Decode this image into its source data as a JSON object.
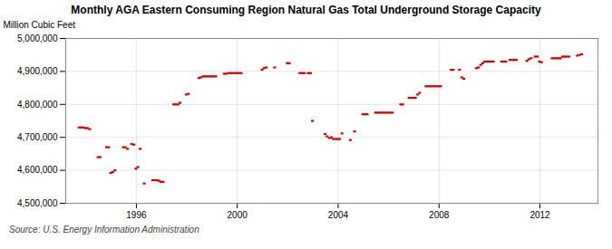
{
  "chart_data": {
    "type": "scatter",
    "marker": "hline",
    "title": "Monthly AGA Eastern Consuming Region Natural Gas Total Underground Storage Capacity",
    "ylabel": "Million Cubic Feet",
    "source": "Source: U.S. Energy Information Administration",
    "color": "#cc0000",
    "grid": true,
    "xlim": [
      1993.2,
      2014.3
    ],
    "xticks": [
      1996,
      2000,
      2004,
      2008,
      2012
    ],
    "ylim": [
      4500000,
      5000000
    ],
    "yticks": [
      {
        "value": 4500000,
        "label": "4,500,000"
      },
      {
        "value": 4600000,
        "label": "4,600,000"
      },
      {
        "value": 4700000,
        "label": "4,700,000"
      },
      {
        "value": 4800000,
        "label": "4,800,000"
      },
      {
        "value": 4900000,
        "label": "4,900,000"
      },
      {
        "value": 5000000,
        "label": "5,000,000"
      }
    ],
    "x": [
      1993.75,
      1993.83,
      1993.92,
      1994.0,
      1994.08,
      1994.17,
      1994.5,
      1994.58,
      1994.83,
      1994.92,
      1995.0,
      1995.08,
      1995.17,
      1995.5,
      1995.58,
      1995.67,
      1995.83,
      1995.92,
      1996.0,
      1996.08,
      1996.17,
      1996.33,
      1996.67,
      1996.75,
      1996.83,
      1996.92,
      1997.0,
      1997.08,
      1997.5,
      1997.58,
      1997.67,
      1997.75,
      1998.0,
      1998.08,
      1998.5,
      1998.58,
      1998.67,
      1998.75,
      1998.83,
      1998.92,
      1999.0,
      1999.08,
      1999.17,
      1999.5,
      1999.58,
      1999.67,
      1999.75,
      1999.83,
      1999.92,
      2000.0,
      2000.08,
      2000.17,
      2001.0,
      2001.08,
      2001.17,
      2001.5,
      2002.0,
      2002.08,
      2002.5,
      2002.58,
      2002.67,
      2002.83,
      2002.92,
      2003.0,
      2003.5,
      2003.58,
      2003.67,
      2003.75,
      2003.83,
      2003.92,
      2004.0,
      2004.08,
      2004.17,
      2004.5,
      2004.67,
      2005.0,
      2005.08,
      2005.17,
      2005.5,
      2005.58,
      2005.67,
      2005.75,
      2005.83,
      2005.92,
      2006.0,
      2006.08,
      2006.17,
      2006.5,
      2006.58,
      2006.83,
      2006.92,
      2007.0,
      2007.08,
      2007.17,
      2007.25,
      2007.5,
      2007.58,
      2007.67,
      2007.75,
      2007.83,
      2007.92,
      2008.0,
      2008.08,
      2008.5,
      2008.58,
      2008.83,
      2008.92,
      2009.0,
      2009.5,
      2009.58,
      2009.67,
      2009.75,
      2009.83,
      2009.92,
      2010.0,
      2010.08,
      2010.17,
      2010.5,
      2010.58,
      2010.67,
      2010.83,
      2010.92,
      2011.0,
      2011.08,
      2011.5,
      2011.58,
      2011.67,
      2011.83,
      2011.92,
      2012.0,
      2012.08,
      2012.5,
      2012.58,
      2012.67,
      2012.75,
      2012.83,
      2012.92,
      2013.0,
      2013.08,
      2013.17,
      2013.5,
      2013.58,
      2013.67
    ],
    "values": [
      4730000,
      4730000,
      4730000,
      4728000,
      4728000,
      4725000,
      4640000,
      4640000,
      4670000,
      4670000,
      4592000,
      4595000,
      4600000,
      4670000,
      4670000,
      4665000,
      4680000,
      4678000,
      4605000,
      4610000,
      4665000,
      4560000,
      4570000,
      4570000,
      4570000,
      4568000,
      4565000,
      4565000,
      4800000,
      4800000,
      4800000,
      4805000,
      4830000,
      4832000,
      4880000,
      4882000,
      4885000,
      4885000,
      4885000,
      4885000,
      4885000,
      4885000,
      4885000,
      4893000,
      4893000,
      4895000,
      4895000,
      4895000,
      4895000,
      4895000,
      4895000,
      4895000,
      4905000,
      4910000,
      4912000,
      4912000,
      4925000,
      4925000,
      4895000,
      4895000,
      4895000,
      4895000,
      4895000,
      4750000,
      4710000,
      4703000,
      4698000,
      4700000,
      4695000,
      4695000,
      4695000,
      4695000,
      4712000,
      4692000,
      4718000,
      4770000,
      4770000,
      4770000,
      4775000,
      4775000,
      4775000,
      4775000,
      4775000,
      4775000,
      4775000,
      4775000,
      4775000,
      4800000,
      4800000,
      4820000,
      4820000,
      4820000,
      4820000,
      4830000,
      4835000,
      4855000,
      4855000,
      4855000,
      4855000,
      4855000,
      4855000,
      4855000,
      4855000,
      4905000,
      4905000,
      4905000,
      4882000,
      4878000,
      4910000,
      4912000,
      4920000,
      4925000,
      4930000,
      4930000,
      4930000,
      4930000,
      4930000,
      4930000,
      4930000,
      4930000,
      4935000,
      4935000,
      4935000,
      4935000,
      4932000,
      4937000,
      4940000,
      4945000,
      4945000,
      4930000,
      4928000,
      4940000,
      4940000,
      4940000,
      4940000,
      4940000,
      4945000,
      4945000,
      4945000,
      4945000,
      4948000,
      4950000,
      4952000
    ]
  }
}
